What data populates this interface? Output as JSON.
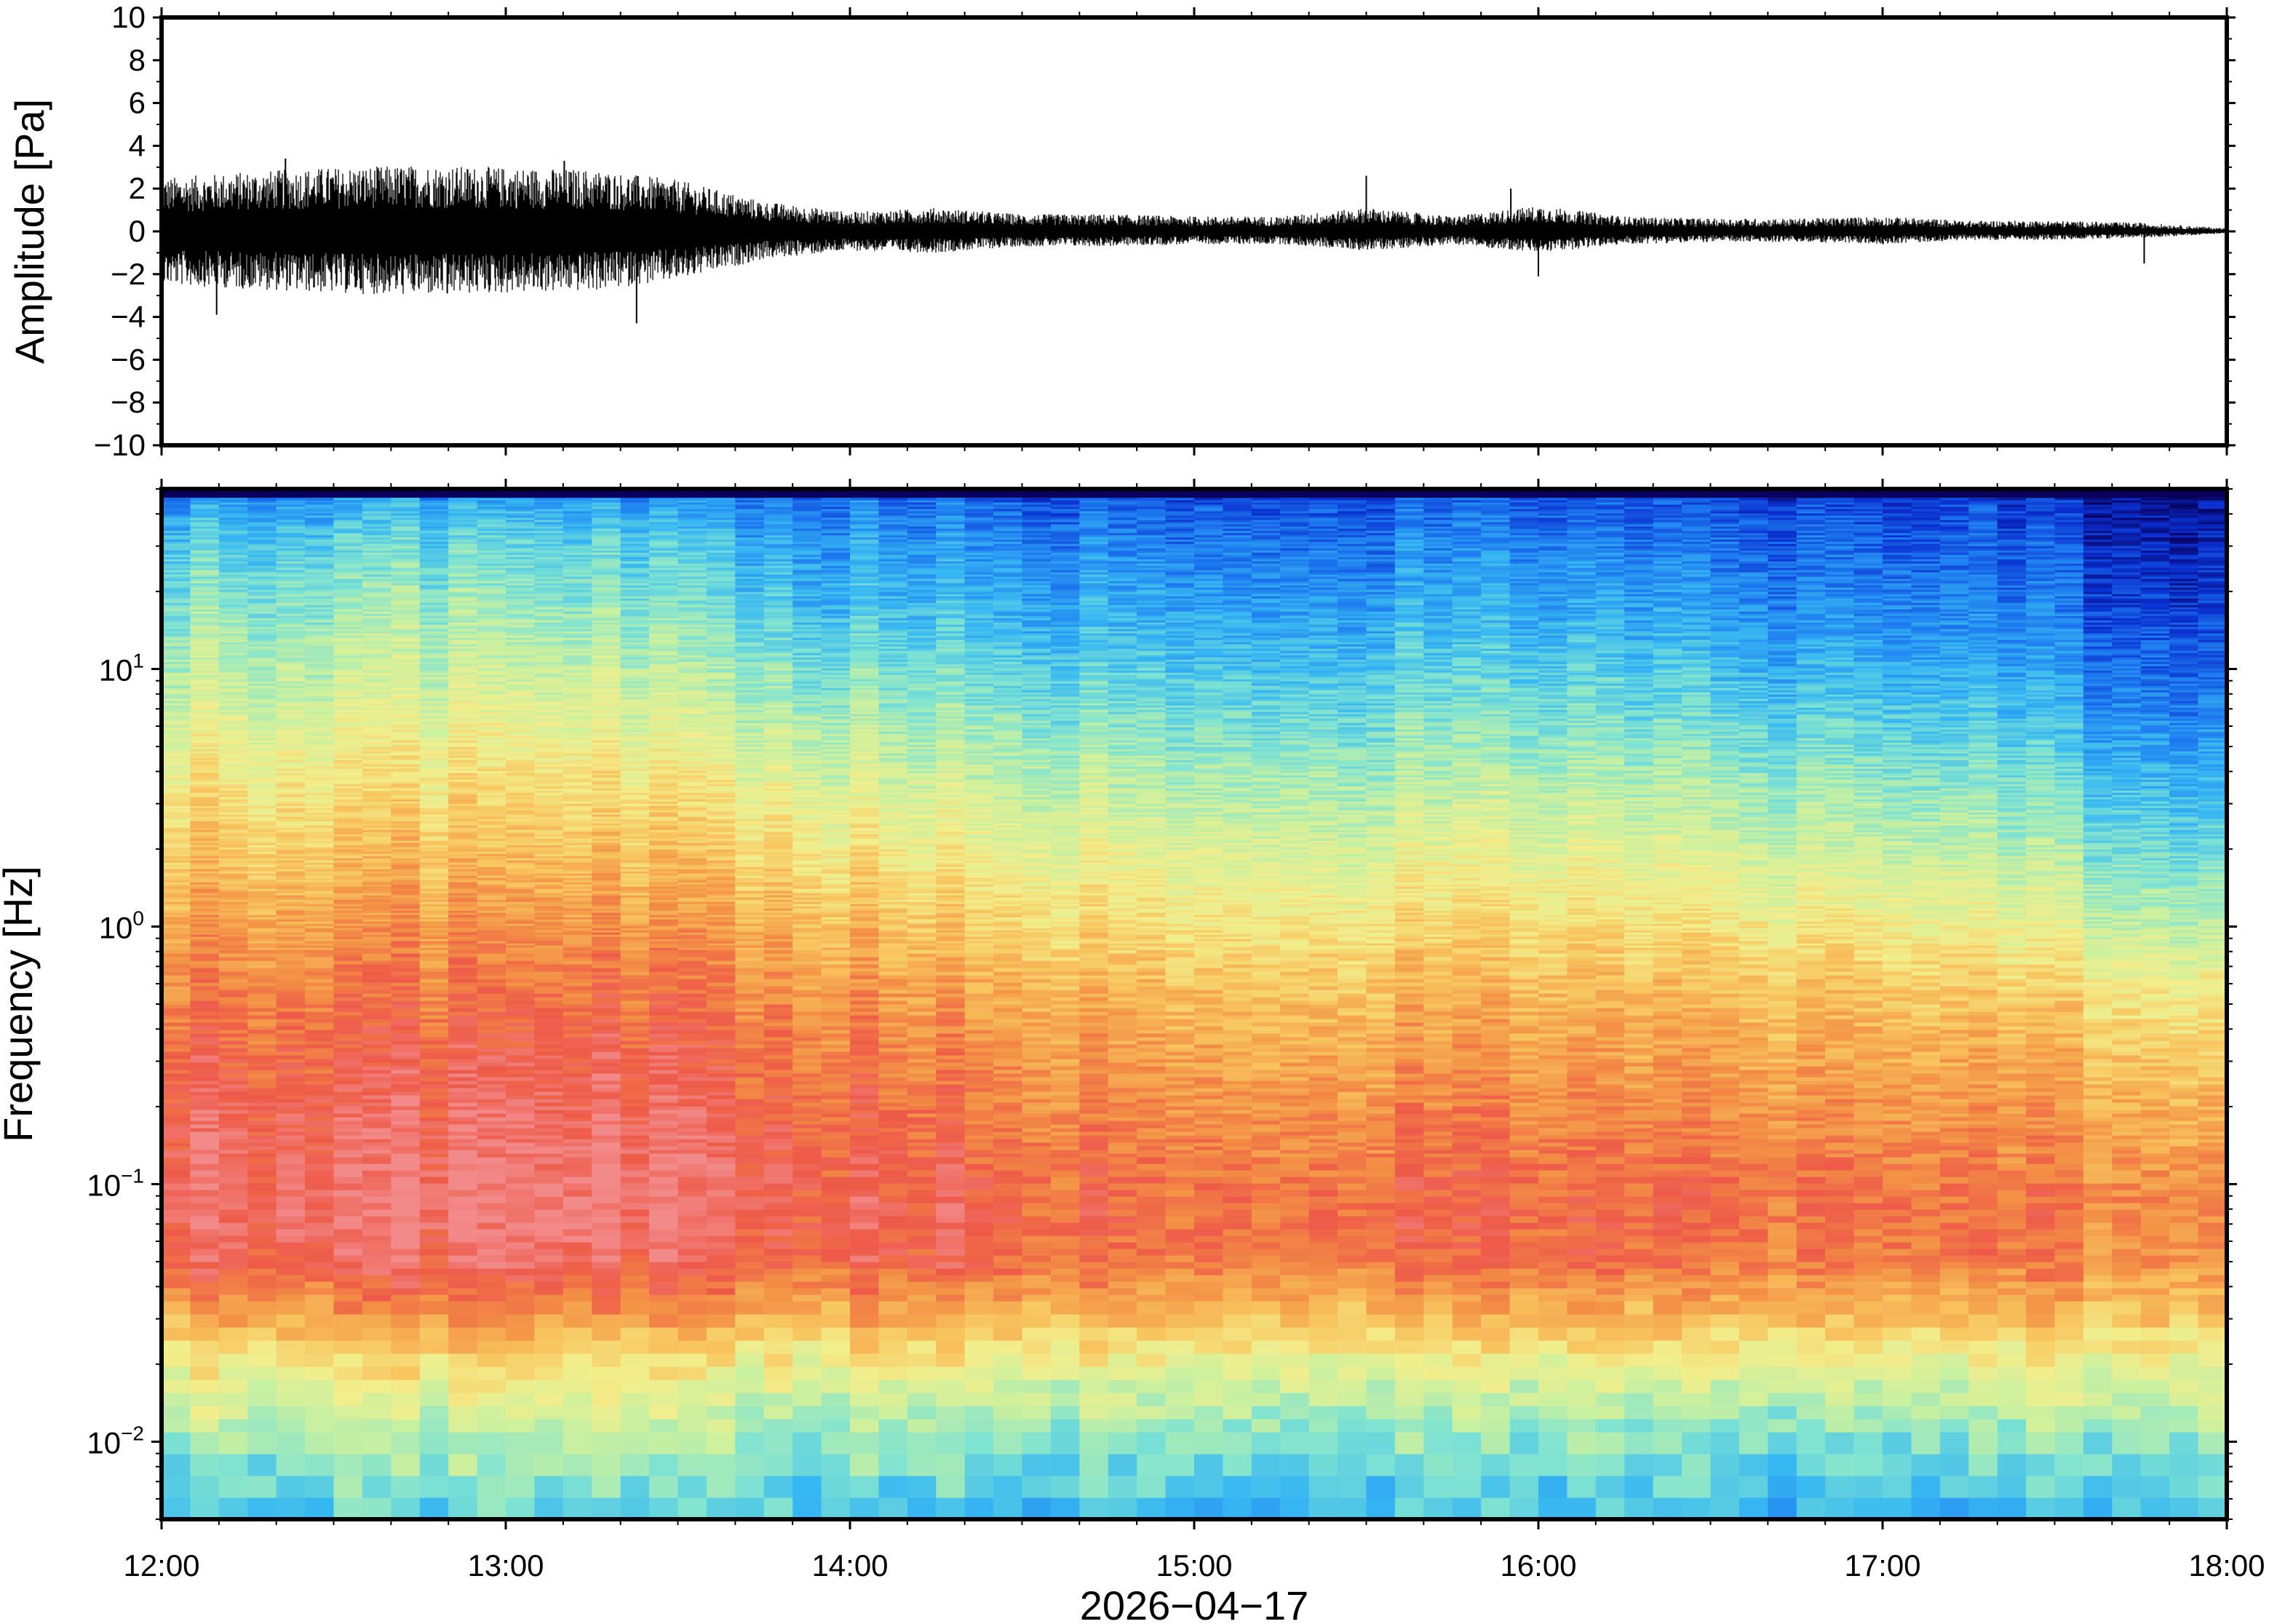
{
  "chart_data": [
    {
      "type": "line",
      "name": "waveform",
      "ylabel": "Amplitude [Pa]",
      "ylim": [
        -10,
        10
      ],
      "yticks": [
        -10,
        -8,
        -6,
        -4,
        -2,
        0,
        2,
        4,
        6,
        8,
        10
      ],
      "ytick_labels": [
        "−10",
        "−8",
        "−6",
        "−4",
        "−2",
        "0",
        "2",
        "4",
        "6",
        "8",
        "10"
      ],
      "xlim_hours": [
        12,
        18
      ],
      "envelope": {
        "t_hours": [
          12.0,
          12.25,
          12.5,
          12.75,
          13.0,
          13.25,
          13.5,
          13.75,
          14.0,
          14.25,
          14.5,
          14.75,
          15.0,
          15.25,
          15.5,
          15.75,
          16.0,
          16.25,
          16.5,
          16.75,
          17.0,
          17.25,
          17.5,
          17.75,
          18.0
        ],
        "upper": [
          2.5,
          2.8,
          3.0,
          3.1,
          3.0,
          2.9,
          2.4,
          1.4,
          0.9,
          1.1,
          0.8,
          0.8,
          0.7,
          0.7,
          1.1,
          0.7,
          1.2,
          0.7,
          0.6,
          0.6,
          0.7,
          0.5,
          0.5,
          0.4,
          0.15
        ],
        "lower": [
          -2.5,
          -2.7,
          -2.9,
          -3.0,
          -2.9,
          -2.8,
          -2.3,
          -1.3,
          -0.9,
          -1.0,
          -0.7,
          -0.7,
          -0.6,
          -0.6,
          -0.9,
          -0.6,
          -1.0,
          -0.6,
          -0.5,
          -0.5,
          -0.6,
          -0.4,
          -0.4,
          -0.3,
          -0.1
        ]
      },
      "spikes": [
        {
          "t_hours": 12.16,
          "value": -3.9
        },
        {
          "t_hours": 12.36,
          "value": 3.4
        },
        {
          "t_hours": 12.83,
          "value": -2.9
        },
        {
          "t_hours": 13.17,
          "value": 3.3
        },
        {
          "t_hours": 13.38,
          "value": -4.3
        },
        {
          "t_hours": 15.5,
          "value": 2.6
        },
        {
          "t_hours": 15.92,
          "value": 2.0
        },
        {
          "t_hours": 16.0,
          "value": -2.1
        },
        {
          "t_hours": 17.76,
          "value": -1.5
        }
      ],
      "color": "#000000"
    },
    {
      "type": "heatmap",
      "name": "spectrogram",
      "ylabel": "Frequency [Hz]",
      "yscale": "log",
      "ylim": [
        0.005,
        50
      ],
      "yticks": [
        {
          "base": "10",
          "exp": "−2",
          "value": 0.01
        },
        {
          "base": "10",
          "exp": "−1",
          "value": 0.1
        },
        {
          "base": "10",
          "exp": "0",
          "value": 1
        },
        {
          "base": "10",
          "exp": "1",
          "value": 10
        }
      ],
      "xlim_hours": [
        12,
        18
      ],
      "xticks": [
        "12:00",
        "13:00",
        "14:00",
        "15:00",
        "16:00",
        "17:00",
        "18:00"
      ],
      "xlabel": "2026−04−17",
      "colormap": [
        "#08005c",
        "#0a2fd0",
        "#1e7cf0",
        "#38b8f2",
        "#7fe3d2",
        "#c9f0a0",
        "#f2ee8c",
        "#f8c45e",
        "#f39146",
        "#ee5a48",
        "#f28a8a"
      ],
      "time_segments_hours": [
        12.0,
        12.5,
        13.0,
        13.5,
        14.0,
        14.5,
        15.0,
        15.5,
        16.0,
        16.5,
        17.0,
        17.5,
        18.0
      ],
      "profile_freq_hz": [
        0.005,
        0.008,
        0.012,
        0.02,
        0.03,
        0.05,
        0.08,
        0.12,
        0.2,
        0.35,
        0.6,
        1.0,
        2.0,
        4.0,
        8.0,
        15.0,
        30.0,
        45.0,
        50.0
      ],
      "profile_color_index_by_segment": [
        [
          3.6,
          4.2,
          5.0,
          6.2,
          7.6,
          9.2,
          9.6,
          9.5,
          9.2,
          8.8,
          8.3,
          7.8,
          6.9,
          6.1,
          5.2,
          4.5,
          3.6,
          2.6,
          0.8
        ],
        [
          3.7,
          4.3,
          5.1,
          6.3,
          7.8,
          9.4,
          9.8,
          9.6,
          9.3,
          8.9,
          8.4,
          7.9,
          7.0,
          6.2,
          5.3,
          4.6,
          3.8,
          2.8,
          0.8
        ],
        [
          3.6,
          4.2,
          5.0,
          6.2,
          7.8,
          9.4,
          9.8,
          9.7,
          9.4,
          9.0,
          8.5,
          7.9,
          7.0,
          6.2,
          5.3,
          4.5,
          3.6,
          2.6,
          0.8
        ],
        [
          3.4,
          4.0,
          4.8,
          6.0,
          7.4,
          9.0,
          9.3,
          9.2,
          9.0,
          8.6,
          8.1,
          7.6,
          6.6,
          5.7,
          4.6,
          3.7,
          2.9,
          2.2,
          0.7
        ],
        [
          3.2,
          3.9,
          4.6,
          5.9,
          7.4,
          8.9,
          9.0,
          8.8,
          8.5,
          8.0,
          7.5,
          6.8,
          5.9,
          5.0,
          4.1,
          3.2,
          2.4,
          1.8,
          0.6
        ],
        [
          3.2,
          3.9,
          4.6,
          5.9,
          7.3,
          8.6,
          8.8,
          8.6,
          8.2,
          7.8,
          7.3,
          6.6,
          5.7,
          4.8,
          3.9,
          3.1,
          2.3,
          1.7,
          0.6
        ],
        [
          3.1,
          3.8,
          4.6,
          5.8,
          7.2,
          8.5,
          8.7,
          8.5,
          8.1,
          7.6,
          7.1,
          6.4,
          5.5,
          4.6,
          3.7,
          2.9,
          2.1,
          1.6,
          0.6
        ],
        [
          3.1,
          3.8,
          4.5,
          5.7,
          7.2,
          8.6,
          8.8,
          8.6,
          8.2,
          7.7,
          7.2,
          6.5,
          5.6,
          4.7,
          3.8,
          3.0,
          2.2,
          1.6,
          0.6
        ],
        [
          3.2,
          3.9,
          4.6,
          5.8,
          7.3,
          8.7,
          8.9,
          8.6,
          8.2,
          7.7,
          7.2,
          6.5,
          5.6,
          4.7,
          3.8,
          3.0,
          2.2,
          1.6,
          0.6
        ],
        [
          3.0,
          3.7,
          4.5,
          5.6,
          7.0,
          8.4,
          8.6,
          8.4,
          8.0,
          7.5,
          7.0,
          6.2,
          5.2,
          4.3,
          3.3,
          2.5,
          1.8,
          1.3,
          0.5
        ],
        [
          3.0,
          3.7,
          4.5,
          5.6,
          7.0,
          8.4,
          8.6,
          8.3,
          7.9,
          7.4,
          6.8,
          6.0,
          5.0,
          4.1,
          3.2,
          2.4,
          1.7,
          1.3,
          0.5
        ],
        [
          3.4,
          4.0,
          4.8,
          5.8,
          7.0,
          8.0,
          8.2,
          7.9,
          7.4,
          6.8,
          6.0,
          5.0,
          3.9,
          3.0,
          2.1,
          1.4,
          0.9,
          0.5,
          0.2
        ]
      ]
    }
  ]
}
